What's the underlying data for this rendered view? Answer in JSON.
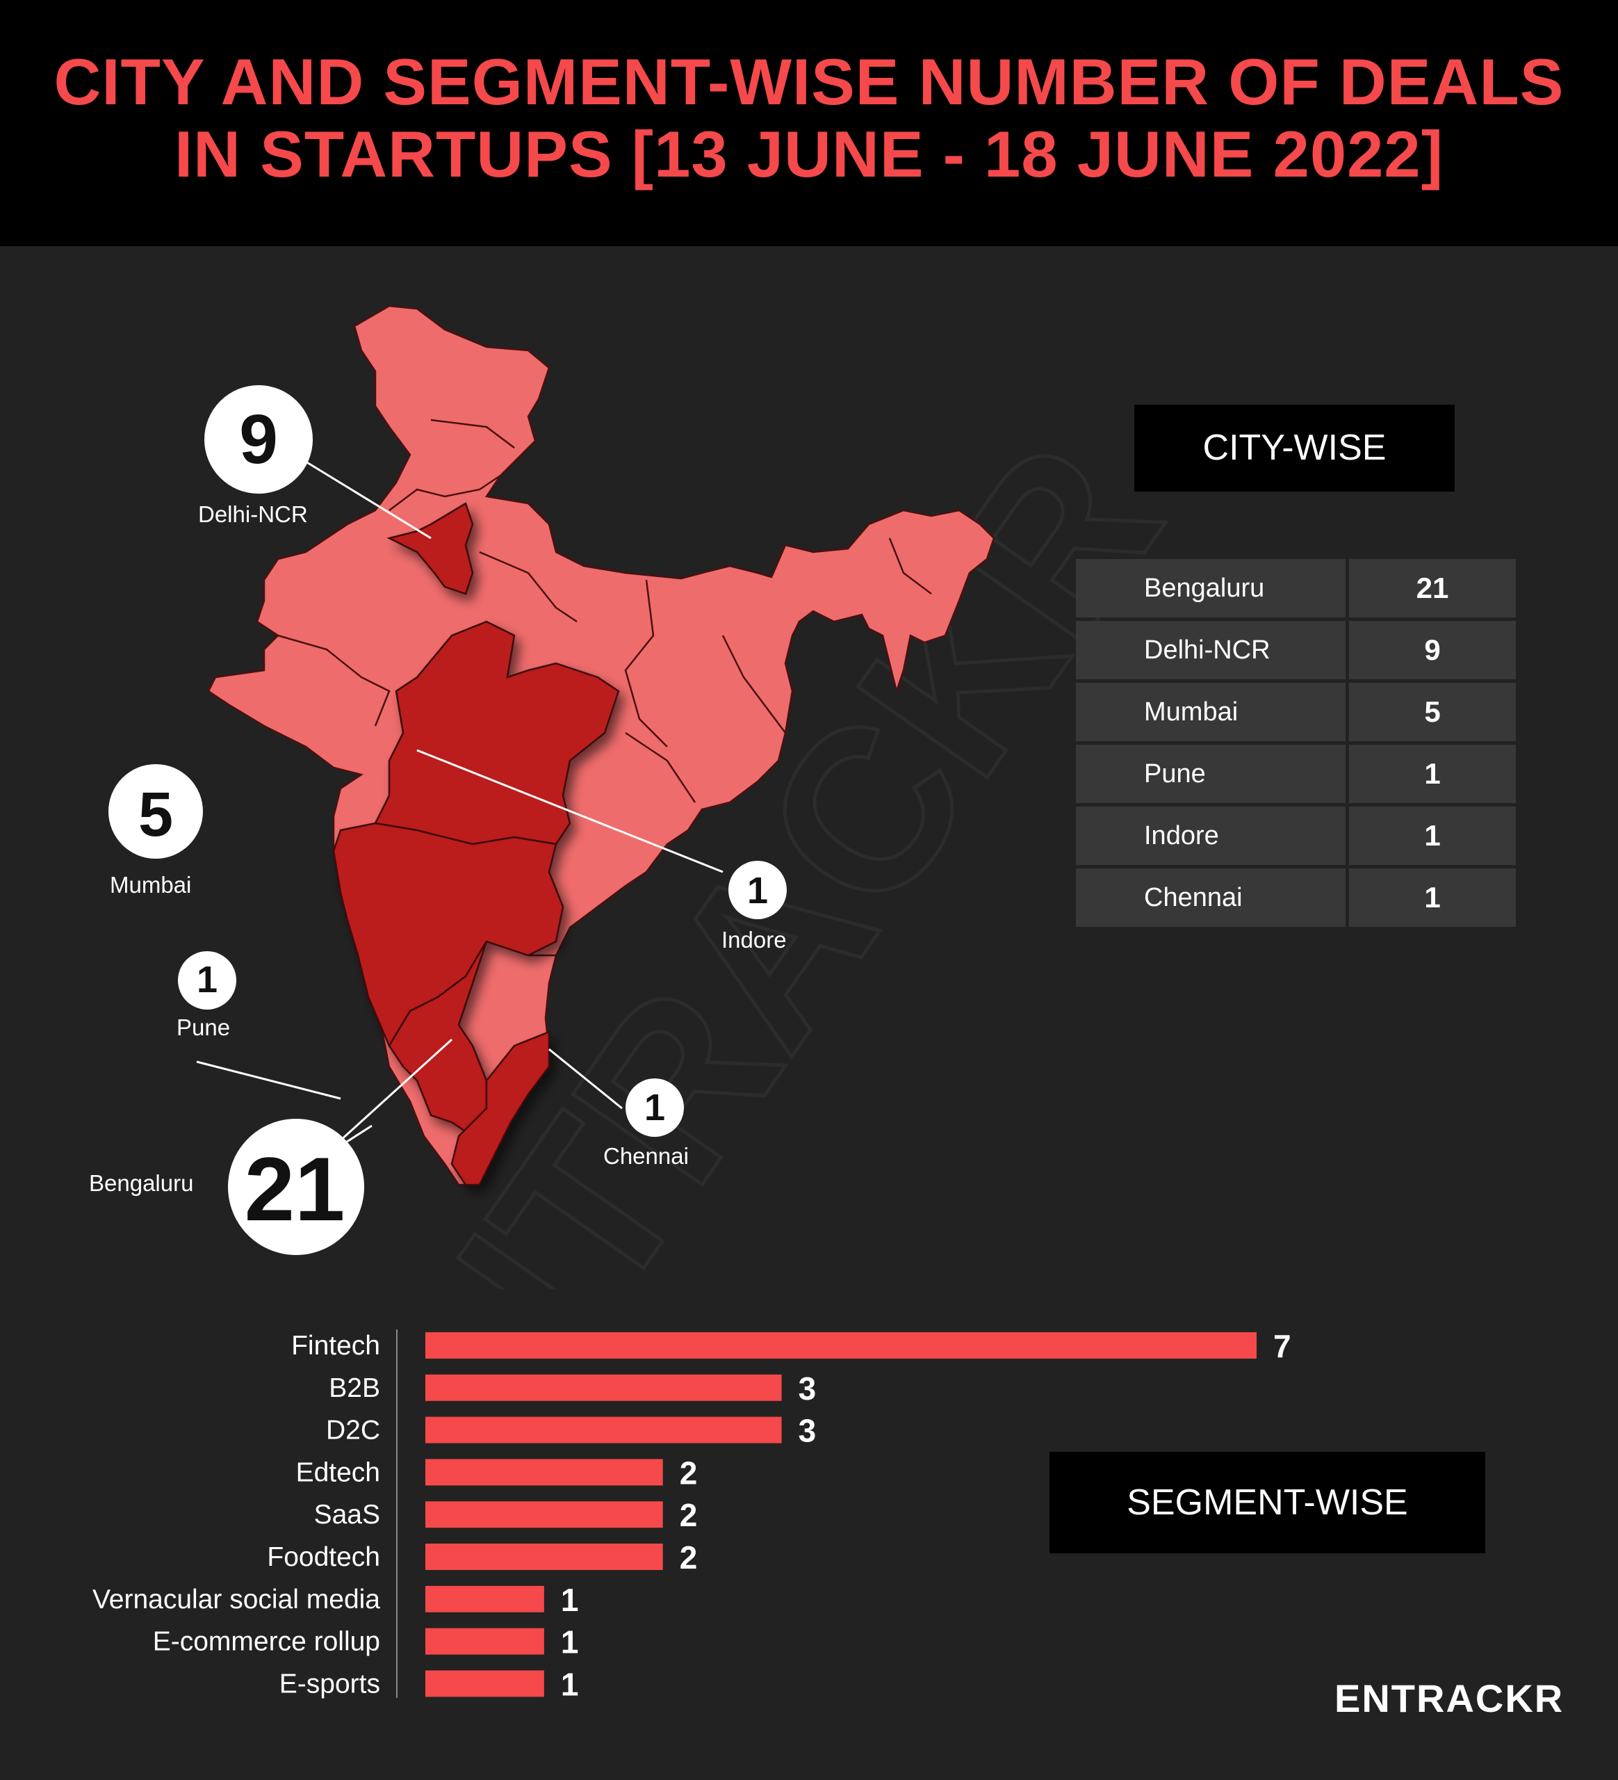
{
  "title": {
    "line1": "CITY AND SEGMENT-WISE NUMBER OF DEALS",
    "line2": "IN STARTUPS [13 JUNE - 18 JUNE 2022]"
  },
  "city_tag": "CITY-WISE",
  "segment_tag": "SEGMENT-WISE",
  "logo": "ENTRACKR",
  "watermark": "ENTRACKR",
  "map_callouts": [
    {
      "city": "Delhi-NCR",
      "value": "9"
    },
    {
      "city": "Mumbai",
      "value": "5"
    },
    {
      "city": "Pune",
      "value": "1"
    },
    {
      "city": "Indore",
      "value": "1"
    },
    {
      "city": "Chennai",
      "value": "1"
    },
    {
      "city": "Bengaluru",
      "value": "21"
    }
  ],
  "colors": {
    "accent": "#f5494b",
    "map_light": "#ef6c6c",
    "map_dark": "#bb1a1a",
    "background": "#222222",
    "table_cell": "#383838"
  },
  "chart_data": [
    {
      "type": "table",
      "title": "CITY-WISE",
      "rows": [
        {
          "city": "Bengaluru",
          "value": 21
        },
        {
          "city": "Delhi-NCR",
          "value": 9
        },
        {
          "city": "Mumbai",
          "value": 5
        },
        {
          "city": "Pune",
          "value": 1
        },
        {
          "city": "Indore",
          "value": 1
        },
        {
          "city": "Chennai",
          "value": 1
        }
      ]
    },
    {
      "type": "bar",
      "orientation": "horizontal",
      "title": "SEGMENT-WISE",
      "categories": [
        "Fintech",
        "B2B",
        "D2C",
        "Edtech",
        "SaaS",
        "Foodtech",
        "Vernacular social media",
        "E-commerce rollup",
        "E-sports"
      ],
      "values": [
        7,
        3,
        3,
        2,
        2,
        2,
        1,
        1,
        1
      ],
      "xlim": [
        0,
        7
      ]
    }
  ]
}
